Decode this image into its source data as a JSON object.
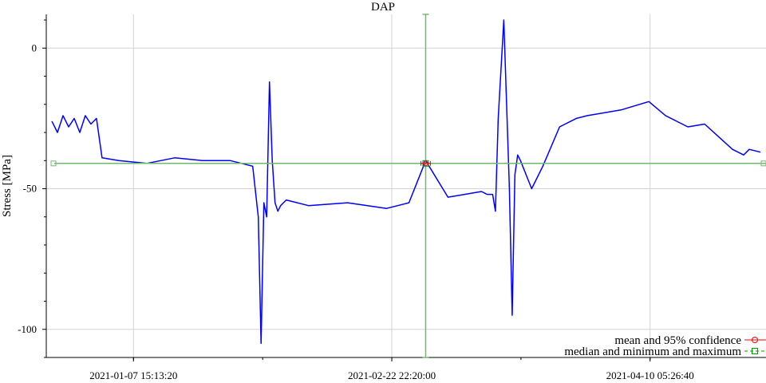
{
  "chart_data": {
    "type": "line",
    "title": "DAP",
    "ylabel": "Stress [MPa]",
    "xlabel": "",
    "ylim": [
      -110,
      12
    ],
    "xlim": [
      "2020-12-23T00:00:00",
      "2021-05-01T00:00:00"
    ],
    "y_ticks": [
      0,
      -50,
      -100
    ],
    "x_tick_labels": [
      "2021-01-07 15:13:20",
      "2021-02-22 22:20:00",
      "2021-04-10 05:26:40"
    ],
    "x_ticks": [
      "2021-01-07T15:13:20",
      "2021-02-22T22:20:00",
      "2021-04-10T05:26:40"
    ],
    "grid": true,
    "legend_position": "bottom-right",
    "colors": {
      "series": "#0000ff",
      "mean": "#ff0000",
      "median": "#00a000",
      "range": "#70b870"
    },
    "series": [
      {
        "name": "",
        "x": [
          "2020-12-24T00:00:00",
          "2020-12-25T00:00:00",
          "2020-12-26T00:00:00",
          "2020-12-27T00:00:00",
          "2020-12-28T00:00:00",
          "2020-12-29T00:00:00",
          "2020-12-30T00:00:00",
          "2020-12-31T00:00:00",
          "2021-01-01T00:00:00",
          "2021-01-02T00:00:00",
          "2021-01-05T00:00:00",
          "2021-01-10T00:00:00",
          "2021-01-15T00:00:00",
          "2021-01-20T00:00:00",
          "2021-01-25T00:00:00",
          "2021-01-29T00:00:00",
          "2021-01-30T00:00:00",
          "2021-01-30T12:00:00",
          "2021-01-31T00:00:00",
          "2021-01-31T12:00:00",
          "2021-02-01T00:00:00",
          "2021-02-01T12:00:00",
          "2021-02-02T00:00:00",
          "2021-02-02T12:00:00",
          "2021-02-03T00:00:00",
          "2021-02-04T00:00:00",
          "2021-02-08T00:00:00",
          "2021-02-15T00:00:00",
          "2021-02-22T00:00:00",
          "2021-02-26T00:00:00",
          "2021-03-01T00:00:00",
          "2021-03-05T00:00:00",
          "2021-03-08T00:00:00",
          "2021-03-11T00:00:00",
          "2021-03-12T00:00:00",
          "2021-03-13T00:00:00",
          "2021-03-13T12:00:00",
          "2021-03-14T00:00:00",
          "2021-03-15T00:00:00",
          "2021-03-16T00:00:00",
          "2021-03-16T12:00:00",
          "2021-03-17T00:00:00",
          "2021-03-17T12:00:00",
          "2021-03-18T00:00:00",
          "2021-03-19T00:00:00",
          "2021-03-20T00:00:00",
          "2021-03-22T00:00:00",
          "2021-03-25T00:00:00",
          "2021-03-27T00:00:00",
          "2021-03-28T00:00:00",
          "2021-03-30T00:00:00",
          "2021-04-05T00:00:00",
          "2021-04-10T00:00:00",
          "2021-04-13T00:00:00",
          "2021-04-16T00:00:00",
          "2021-04-17T00:00:00",
          "2021-04-20T00:00:00",
          "2021-04-25T00:00:00",
          "2021-04-27T00:00:00",
          "2021-04-28T00:00:00",
          "2021-04-30T00:00:00"
        ],
        "y": [
          -26,
          -30,
          -24,
          -28,
          -25,
          -30,
          -24,
          -27,
          -25,
          -39,
          -40,
          -41,
          -39,
          -40,
          -40,
          -42,
          -60,
          -105,
          -55,
          -60,
          -12,
          -40,
          -55,
          -58,
          -56,
          -54,
          -56,
          -55,
          -57,
          -55,
          -40,
          -53,
          -52,
          -51,
          -52,
          -52,
          -58,
          -25,
          10,
          -50,
          -95,
          -45,
          -38,
          -40,
          -45,
          -50,
          -42,
          -28,
          -26,
          -25,
          -24,
          -22,
          -19,
          -24,
          -27,
          -28,
          -27,
          -36,
          -38,
          -36,
          -37
        ]
      }
    ],
    "mean": {
      "x": "2021-03-01T00:00:00",
      "y": -41,
      "ci": [
        -42,
        -40
      ]
    },
    "median": {
      "x": "2021-03-01T00:00:00",
      "y": -41,
      "min": -110,
      "max": 12
    },
    "legend": [
      {
        "label": "mean and 95% confidence",
        "color": "#ff0000",
        "marker": "circle"
      },
      {
        "label": "median and minimum and maximum",
        "color": "#00a000",
        "marker": "square"
      }
    ]
  }
}
